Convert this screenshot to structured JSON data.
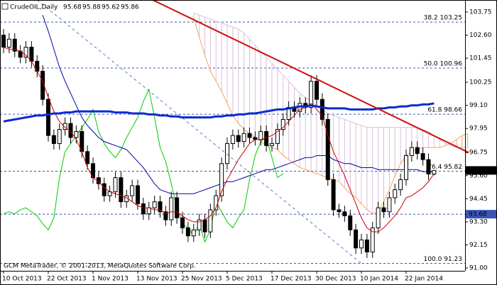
{
  "chart_data": {
    "type": "candlestick",
    "title": "CrudeOIL,Daily",
    "watermark": "GCM MetaTrader, © 2001-2013, MetaQuotes Software Corp.",
    "categories": [
      "10 Oct 2013",
      null,
      null,
      null,
      null,
      null,
      null,
      null,
      "22 Oct 2013",
      null,
      null,
      null,
      null,
      null,
      null,
      null,
      "1 Nov 2013",
      null,
      null,
      null,
      null,
      null,
      null,
      null,
      "13 Nov 2013",
      null,
      null,
      null,
      null,
      null,
      null,
      null,
      "25 Nov 2013",
      null,
      null,
      null,
      null,
      null,
      null,
      null,
      "5 Dec 2013",
      null,
      null,
      null,
      null,
      null,
      null,
      null,
      "17 Dec 2013",
      null,
      null,
      null,
      null,
      null,
      null,
      null,
      "30 Dec 2013",
      null,
      null,
      null,
      null,
      null,
      null,
      null,
      "10 Jan 2014",
      null,
      null,
      null,
      null,
      null,
      null,
      null,
      "22 Jan 2014",
      null,
      null,
      null,
      null,
      null,
      null,
      null,
      null,
      null,
      null,
      null
    ],
    "open": [
      102.6,
      102.0,
      102.4,
      101.8,
      101.5,
      102.0,
      101.3,
      100.8,
      99.4,
      97.6,
      97.2,
      97.9,
      98.2,
      97.5,
      97.8,
      96.8,
      96.2,
      95.5,
      95.2,
      94.6,
      94.8,
      95.5,
      94.3,
      94.6,
      95.1,
      94.2,
      93.7,
      94.0,
      94.3,
      93.8,
      93.4,
      94.5,
      93.5,
      93.0,
      92.6,
      92.9,
      93.4,
      92.8,
      93.9,
      94.6,
      96.2,
      97.2,
      97.6,
      97.3,
      97.7,
      97.5,
      97.4,
      97.8,
      97.1,
      97.2,
      97.9,
      98.4,
      99.0,
      98.8,
      99.2,
      99.0,
      100.3,
      99.4,
      98.4,
      95.4,
      93.9,
      93.8,
      93.6,
      92.9,
      92.0,
      92.4,
      91.8,
      93.0,
      94.0,
      93.8,
      94.5,
      94.9,
      95.4,
      96.6,
      97.0,
      96.7,
      96.4,
      95.68,
      null,
      null,
      null,
      null,
      null,
      null
    ],
    "high": [
      102.9,
      102.7,
      102.7,
      102.1,
      102.3,
      102.3,
      101.6,
      101.1,
      99.7,
      97.9,
      98.2,
      98.5,
      98.5,
      98.1,
      98.1,
      97.1,
      96.5,
      95.8,
      95.5,
      95.1,
      95.8,
      95.8,
      94.9,
      95.4,
      95.4,
      94.5,
      94.3,
      94.6,
      94.6,
      94.1,
      94.8,
      94.8,
      93.8,
      93.3,
      93.2,
      93.7,
      93.7,
      94.2,
      94.9,
      96.5,
      97.5,
      97.9,
      97.9,
      98.0,
      98.0,
      97.8,
      98.1,
      98.1,
      97.5,
      98.2,
      98.7,
      99.3,
      99.3,
      99.5,
      99.5,
      100.6,
      100.6,
      99.7,
      98.7,
      95.7,
      94.2,
      94.1,
      93.9,
      93.2,
      92.7,
      92.7,
      93.3,
      94.3,
      94.3,
      94.8,
      95.2,
      95.7,
      96.9,
      97.3,
      97.3,
      97.0,
      96.7,
      95.88,
      null,
      null,
      null,
      null,
      null,
      null
    ],
    "low": [
      101.7,
      101.7,
      101.5,
      101.2,
      101.2,
      101.0,
      100.5,
      99.1,
      97.3,
      96.9,
      96.9,
      97.6,
      97.2,
      97.2,
      96.5,
      95.9,
      95.2,
      94.9,
      94.3,
      94.3,
      94.5,
      94.0,
      94.0,
      94.3,
      93.9,
      93.4,
      93.4,
      93.7,
      93.5,
      93.1,
      93.1,
      93.2,
      92.7,
      92.3,
      92.3,
      92.6,
      92.5,
      92.5,
      93.6,
      94.3,
      95.9,
      96.9,
      97.0,
      97.0,
      97.2,
      97.1,
      97.1,
      96.8,
      96.8,
      96.9,
      97.6,
      98.1,
      98.5,
      98.5,
      98.7,
      98.7,
      99.1,
      98.1,
      95.1,
      93.6,
      93.5,
      93.3,
      92.6,
      91.7,
      91.7,
      91.5,
      91.5,
      92.7,
      93.5,
      93.5,
      94.2,
      94.6,
      95.1,
      96.3,
      96.4,
      96.1,
      95.38,
      95.62,
      null,
      null,
      null,
      null,
      null,
      null
    ],
    "close": [
      102.0,
      102.4,
      101.8,
      101.5,
      102.0,
      101.3,
      100.8,
      99.4,
      97.6,
      97.2,
      97.9,
      98.2,
      97.5,
      97.8,
      96.8,
      96.2,
      95.5,
      95.2,
      94.6,
      94.8,
      95.5,
      94.3,
      94.6,
      95.1,
      94.2,
      93.7,
      94.0,
      94.3,
      93.8,
      93.4,
      94.5,
      93.5,
      93.0,
      92.6,
      92.9,
      93.4,
      92.8,
      93.9,
      94.6,
      96.2,
      97.2,
      97.6,
      97.3,
      97.7,
      97.5,
      97.4,
      97.8,
      97.1,
      97.2,
      97.9,
      98.4,
      99.0,
      98.8,
      99.2,
      99.0,
      100.3,
      99.4,
      98.4,
      95.4,
      93.9,
      93.8,
      93.6,
      92.9,
      92.0,
      92.4,
      91.8,
      93.0,
      94.0,
      93.8,
      94.5,
      94.9,
      95.4,
      96.6,
      97.0,
      96.7,
      96.4,
      95.68,
      95.86,
      null,
      null,
      null,
      null,
      null,
      null
    ],
    "up_color": "#ffffff",
    "down_color": "#000000",
    "cloud": {
      "span_a": {
        "color": "#f4a460",
        "values": [
          null,
          null,
          null,
          null,
          null,
          null,
          null,
          null,
          null,
          null,
          null,
          null,
          null,
          null,
          null,
          null,
          null,
          null,
          null,
          null,
          null,
          null,
          null,
          null,
          null,
          null,
          null,
          null,
          null,
          null,
          null,
          null,
          null,
          null,
          103.5,
          102.5,
          101.6,
          100.8,
          100.3,
          99.8,
          99.2,
          98.6,
          98.2,
          97.9,
          97.7,
          97.5,
          97.3,
          97.1,
          97.0,
          96.9,
          96.6,
          96.4,
          96.2,
          96.0,
          95.9,
          95.8,
          95.7,
          95.6,
          95.5,
          95.4,
          95.3,
          95.0,
          94.7,
          94.5,
          94.2,
          93.9,
          93.7,
          93.8,
          94.3,
          94.9,
          95.6,
          96.2,
          96.6,
          96.8,
          96.9,
          97.0,
          97.0,
          97.0,
          97.0,
          97.1,
          97.2,
          97.4,
          97.6,
          97.7
        ]
      },
      "span_b": {
        "color": "#d8bfd8",
        "values": [
          null,
          null,
          null,
          null,
          null,
          null,
          null,
          null,
          null,
          null,
          null,
          null,
          null,
          null,
          null,
          null,
          null,
          null,
          null,
          null,
          null,
          null,
          null,
          null,
          null,
          null,
          null,
          null,
          null,
          null,
          null,
          null,
          null,
          null,
          103.7,
          103.6,
          103.5,
          103.4,
          103.3,
          103.2,
          103.1,
          103.0,
          102.9,
          102.7,
          102.4,
          102.1,
          101.8,
          101.5,
          101.2,
          100.9,
          100.6,
          100.3,
          100.0,
          99.7,
          99.5,
          99.3,
          99.1,
          98.9,
          98.7,
          98.6,
          98.5,
          98.4,
          98.3,
          98.2,
          98.1,
          98.0,
          98.0,
          98.0,
          98.0,
          98.0,
          98.0,
          98.0,
          98.0,
          98.0,
          98.0,
          97.9,
          97.8,
          97.6,
          97.4,
          97.2,
          97.1,
          97.0,
          97.0,
          97.0
        ]
      }
    },
    "lines": [
      {
        "color": "#00cc00",
        "width": 1,
        "values": [
          93.7,
          93.8,
          93.7,
          93.9,
          94.0,
          93.8,
          93.6,
          93.2,
          92.9,
          93.5,
          95.5,
          96.8,
          97.2,
          97.6,
          98.0,
          98.4,
          98.9,
          97.8,
          97.2,
          96.8,
          96.5,
          96.9,
          97.5,
          98.0,
          98.5,
          99.3,
          99.9,
          98.5,
          97.0,
          96.3,
          95.2,
          94.0,
          93.2,
          93.0,
          92.6,
          93.2,
          92.3,
          92.9,
          94.3,
          93.8,
          93.3,
          93.0,
          93.5,
          93.9,
          95.4,
          96.6,
          97.3,
          97.5,
          96.5,
          95.5,
          95.7,
          null,
          null,
          null,
          null,
          null,
          null,
          null,
          null,
          null,
          null,
          null,
          null,
          null,
          null,
          null,
          null,
          null,
          null,
          null,
          null,
          null,
          null,
          null,
          null,
          null,
          null,
          null,
          null,
          null,
          null,
          null,
          null,
          null
        ]
      },
      {
        "color": "#0000aa",
        "width": 1,
        "values": [
          null,
          null,
          null,
          null,
          null,
          null,
          null,
          103.6,
          102.8,
          101.9,
          101.0,
          100.3,
          99.7,
          99.1,
          98.5,
          98.1,
          97.8,
          97.5,
          97.3,
          97.2,
          97.1,
          97.0,
          96.9,
          96.6,
          96.3,
          96.0,
          95.6,
          95.2,
          94.9,
          94.8,
          94.7,
          94.7,
          94.7,
          94.7,
          94.7,
          94.8,
          94.9,
          95.0,
          95.1,
          95.2,
          95.3,
          95.3,
          95.4,
          95.5,
          95.6,
          95.7,
          95.8,
          95.9,
          95.9,
          96.0,
          96.1,
          96.2,
          96.3,
          96.4,
          96.5,
          96.5,
          96.6,
          96.6,
          96.6,
          96.4,
          96.3,
          96.2,
          96.2,
          96.1,
          96.0,
          96.0,
          96.0,
          95.9,
          95.9,
          95.9,
          95.9,
          95.9,
          95.9,
          95.9,
          95.9,
          95.8,
          95.8,
          95.8,
          null,
          null,
          null,
          null,
          null,
          null
        ]
      },
      {
        "color": "#cc0000",
        "width": 1,
        "values": [
          102.0,
          101.9,
          101.9,
          101.8,
          101.6,
          101.3,
          100.8,
          100.3,
          99.5,
          98.8,
          98.3,
          98.0,
          97.8,
          97.4,
          96.8,
          96.0,
          95.5,
          95.3,
          95.0,
          94.8,
          94.7,
          94.6,
          94.5,
          94.3,
          94.1,
          94.0,
          94.0,
          93.9,
          93.9,
          93.7,
          93.8,
          93.8,
          93.6,
          93.4,
          93.3,
          93.3,
          93.4,
          93.6,
          94.0,
          94.8,
          95.4,
          95.9,
          96.4,
          96.8,
          97.2,
          97.4,
          97.4,
          97.5,
          97.6,
          97.8,
          98.0,
          98.3,
          98.6,
          98.9,
          99.0,
          99.2,
          98.9,
          98.6,
          97.6,
          96.8,
          96.2,
          95.6,
          94.9,
          94.2,
          93.5,
          93.0,
          92.8,
          92.8,
          93.0,
          93.3,
          93.6,
          94.0,
          94.5,
          94.6,
          94.8,
          95.0,
          95.3,
          95.7,
          null,
          null,
          null,
          null,
          null,
          null
        ]
      },
      {
        "color": "#0a2ad0",
        "width": 3,
        "values": [
          98.3,
          98.35,
          98.4,
          98.45,
          98.5,
          98.55,
          98.6,
          98.6,
          98.65,
          98.7,
          98.7,
          98.75,
          98.75,
          98.8,
          98.8,
          98.8,
          98.8,
          98.8,
          98.8,
          98.8,
          98.75,
          98.75,
          98.75,
          98.7,
          98.7,
          98.7,
          98.65,
          98.65,
          98.6,
          98.6,
          98.55,
          98.55,
          98.5,
          98.5,
          98.5,
          98.5,
          98.5,
          98.5,
          98.55,
          98.55,
          98.6,
          98.6,
          98.65,
          98.65,
          98.7,
          98.7,
          98.75,
          98.8,
          98.85,
          98.9,
          98.9,
          98.95,
          99.0,
          99.05,
          99.05,
          99.1,
          99.05,
          99.0,
          98.95,
          98.95,
          98.95,
          98.95,
          98.9,
          98.9,
          98.9,
          98.9,
          98.9,
          98.95,
          98.95,
          99.0,
          99.0,
          99.05,
          99.05,
          99.1,
          99.1,
          99.15,
          99.15,
          99.2,
          null,
          null,
          null,
          null,
          null,
          null
        ]
      }
    ],
    "levels": [
      {
        "value": 103.25,
        "label": "38.2 103.25"
      },
      {
        "value": 100.96,
        "label": "50.0 100.96"
      },
      {
        "value": 98.66,
        "label": "61.8 98.66"
      },
      {
        "value": 95.82,
        "label": "76.4 95.82"
      },
      {
        "value": 91.23,
        "label": "100.0 91.23"
      }
    ],
    "level_color": "#3a55b4",
    "price_lines": [
      {
        "value": 93.68,
        "color": "#3a55b4"
      }
    ],
    "trendlines": [
      {
        "color": "#d01010",
        "width": 2,
        "dash": false,
        "x": [
          26.7,
          83.2
        ],
        "y": [
          104.35,
          96.75
        ]
      },
      {
        "color": "#5b7bbf",
        "width": 1,
        "dash": true,
        "x": [
          6,
          64
        ],
        "y": [
          104.35,
          91.23
        ]
      }
    ],
    "ylim": [
      90.86,
      104.35
    ],
    "yticks": [
      103.75,
      {
        "value": 102.6,
        "label": "102.60"
      },
      101.45,
      100.25,
      {
        "value": 99.1,
        "label": "99.10"
      },
      97.95,
      96.75,
      {
        "value": 95.6,
        "label": "95.60"
      },
      94.45,
      {
        "value": 93.3,
        "label": "93.30"
      },
      92.15,
      {
        "value": 91.0,
        "label": "91.00"
      }
    ]
  }
}
